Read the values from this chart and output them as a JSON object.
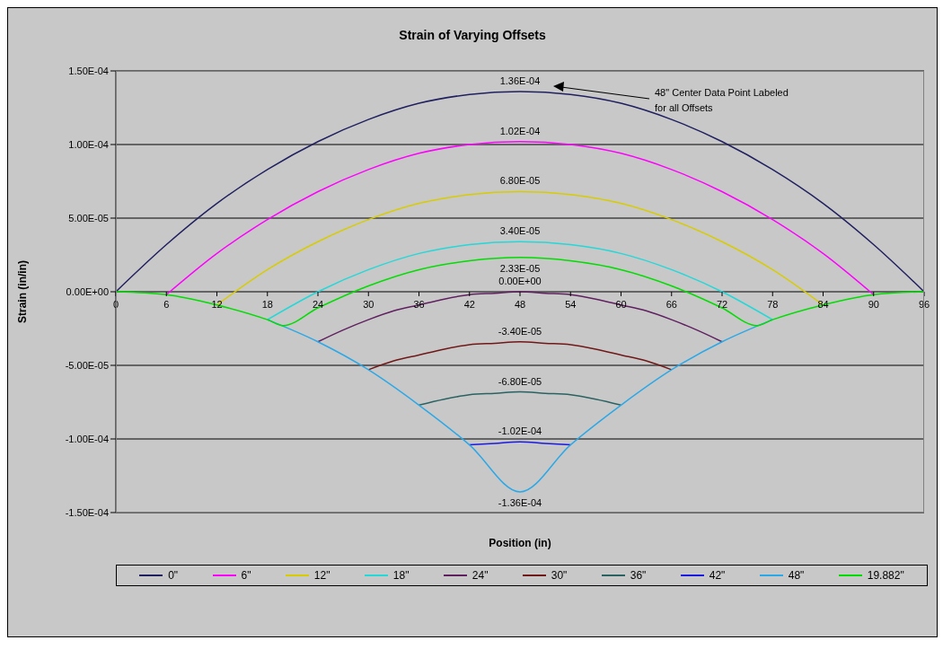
{
  "chart_data": {
    "type": "line",
    "title": "Strain of Varying Offsets",
    "xlabel": "Position (in)",
    "ylabel": "Strain (in/in)",
    "xlim": [
      0,
      96
    ],
    "xticks": [
      0,
      6,
      12,
      18,
      24,
      30,
      36,
      42,
      48,
      54,
      60,
      66,
      72,
      78,
      84,
      90,
      96
    ],
    "ylim": [
      -0.00015,
      0.00015
    ],
    "yticks": [
      {
        "value": -0.00015,
        "label": "-1.50E-04"
      },
      {
        "value": -0.0001,
        "label": "-1.00E-04"
      },
      {
        "value": -5e-05,
        "label": "-5.00E-05"
      },
      {
        "value": 0,
        "label": "0.00E+00"
      },
      {
        "value": 5e-05,
        "label": "5.00E-05"
      },
      {
        "value": 0.0001,
        "label": "1.00E-04"
      },
      {
        "value": 0.00015,
        "label": "1.50E-04"
      }
    ],
    "grid": "y",
    "legend": "bottom",
    "marker": "none",
    "line_style": "solid",
    "annotations": [
      "48\" Center Data Point Labeled for all Offsets"
    ],
    "series": [
      {
        "name": "0\"",
        "color": "#202060",
        "x": [
          0,
          6,
          12,
          18,
          24,
          30,
          36,
          42,
          48,
          54,
          60,
          66,
          72,
          78,
          84,
          90,
          96
        ],
        "values": [
          0,
          3.2e-05,
          6e-05,
          8.3e-05,
          0.000102,
          0.000117,
          0.000128,
          0.000134,
          0.000136,
          0.000134,
          0.000128,
          0.000117,
          0.000102,
          8.3e-05,
          6e-05,
          3.2e-05,
          0
        ],
        "value_labels": [
          null,
          null,
          null,
          null,
          null,
          null,
          null,
          null,
          "1.36E-04",
          null,
          null,
          null,
          null,
          null,
          null,
          null,
          null
        ]
      },
      {
        "name": "6\"",
        "color": "#ff00ff",
        "x": [
          6,
          12,
          18,
          24,
          30,
          36,
          42,
          48,
          54,
          60,
          66,
          72,
          78,
          84,
          90
        ],
        "values": [
          -2e-06,
          2.6e-05,
          4.9e-05,
          6.8e-05,
          8.3e-05,
          9.4e-05,
          0.0001,
          0.000102,
          0.0001,
          9.4e-05,
          8.3e-05,
          6.8e-05,
          4.9e-05,
          2.6e-05,
          -2e-06
        ],
        "value_labels": [
          null,
          null,
          null,
          null,
          null,
          null,
          null,
          "1.02E-04",
          null,
          null,
          null,
          null,
          null,
          null,
          null
        ]
      },
      {
        "name": "12\"",
        "color": "#d8cc00",
        "x": [
          12,
          18,
          24,
          30,
          36,
          42,
          48,
          54,
          60,
          66,
          72,
          78,
          84
        ],
        "values": [
          -9e-06,
          1.5e-05,
          3.4e-05,
          4.9e-05,
          6e-05,
          6.6e-05,
          6.8e-05,
          6.6e-05,
          6e-05,
          4.9e-05,
          3.4e-05,
          1.5e-05,
          -9e-06
        ],
        "value_labels": [
          null,
          null,
          null,
          null,
          null,
          null,
          "6.80E-05",
          null,
          null,
          null,
          null,
          null,
          null
        ]
      },
      {
        "name": "18\"",
        "color": "#22d8d8",
        "x": [
          18,
          24,
          30,
          36,
          42,
          48,
          54,
          60,
          66,
          72,
          78
        ],
        "values": [
          -1.9e-05,
          0,
          1.5e-05,
          2.6e-05,
          3.2e-05,
          3.4e-05,
          3.2e-05,
          2.6e-05,
          1.5e-05,
          0,
          -1.9e-05
        ],
        "value_labels": [
          null,
          null,
          null,
          null,
          null,
          "3.40E-05",
          null,
          null,
          null,
          null,
          null
        ]
      },
      {
        "name": "24\"",
        "color": "#602060",
        "x": [
          24,
          27,
          30,
          33,
          36,
          39,
          42,
          45,
          48,
          51,
          54,
          57,
          60,
          63,
          66,
          69,
          72
        ],
        "values": [
          -3.4e-05,
          -2.6e-05,
          -1.9e-05,
          -1.3e-05,
          -9e-06,
          -5e-06,
          -2e-06,
          -1e-06,
          0,
          -1e-06,
          -2e-06,
          -5e-06,
          -9e-06,
          -1.3e-05,
          -1.9e-05,
          -2.6e-05,
          -3.4e-05
        ],
        "value_labels": [
          null,
          null,
          null,
          null,
          null,
          null,
          null,
          null,
          "0.00E+00",
          null,
          null,
          null,
          null,
          null,
          null,
          null,
          null
        ]
      },
      {
        "name": "30\"",
        "color": "#701818",
        "x": [
          30,
          33,
          36,
          39,
          42,
          45,
          48,
          51,
          54,
          57,
          60,
          63,
          66
        ],
        "values": [
          -5.3e-05,
          -4.7e-05,
          -4.3e-05,
          -3.9e-05,
          -3.6e-05,
          -3.5e-05,
          -3.4e-05,
          -3.5e-05,
          -3.6e-05,
          -3.9e-05,
          -4.3e-05,
          -4.7e-05,
          -5.3e-05
        ],
        "value_labels": [
          null,
          null,
          null,
          null,
          null,
          null,
          "-3.40E-05",
          null,
          null,
          null,
          null,
          null,
          null
        ]
      },
      {
        "name": "36\"",
        "color": "#2a6262",
        "x": [
          36,
          39,
          42,
          45,
          48,
          51,
          54,
          57,
          60
        ],
        "values": [
          -7.7e-05,
          -7.3e-05,
          -7e-05,
          -6.9e-05,
          -6.8e-05,
          -6.9e-05,
          -7e-05,
          -7.3e-05,
          -7.7e-05
        ],
        "value_labels": [
          null,
          null,
          null,
          null,
          "-6.80E-05",
          null,
          null,
          null,
          null
        ]
      },
      {
        "name": "42\"",
        "color": "#1a1ae0",
        "x": [
          42,
          45,
          48,
          51,
          54
        ],
        "values": [
          -0.000104,
          -0.000103,
          -0.000102,
          -0.000103,
          -0.000104
        ],
        "value_labels": [
          null,
          null,
          "-1.02E-04",
          null,
          null
        ]
      },
      {
        "name": "48\"",
        "color": "#2aa8e8",
        "x": [
          18,
          24,
          30,
          36,
          42,
          48,
          54,
          60,
          66,
          72,
          78
        ],
        "values": [
          -1.9e-05,
          -3.4e-05,
          -5.3e-05,
          -7.7e-05,
          -0.000104,
          -0.000136,
          -0.000104,
          -7.7e-05,
          -5.3e-05,
          -3.4e-05,
          -1.9e-05
        ],
        "value_labels": [
          null,
          null,
          null,
          null,
          null,
          "-1.36E-04",
          null,
          null,
          null,
          null,
          null
        ]
      },
      {
        "name": "19.882\"",
        "color": "#00dd00",
        "x": [
          0,
          6,
          12,
          18,
          19.882,
          24,
          30,
          36,
          42,
          48,
          54,
          60,
          66,
          72,
          76.118,
          78,
          84,
          90,
          96
        ],
        "values": [
          0,
          -2e-06,
          -9e-06,
          -1.9e-05,
          -2.3e-05,
          -1.1e-05,
          4e-06,
          1.5e-05,
          2.1e-05,
          2.33e-05,
          2.1e-05,
          1.5e-05,
          4e-06,
          -1.1e-05,
          -2.3e-05,
          -1.9e-05,
          -9e-06,
          -2e-06,
          0
        ],
        "value_labels": [
          null,
          null,
          null,
          null,
          null,
          null,
          null,
          null,
          null,
          "2.33E-05",
          null,
          null,
          null,
          null,
          null,
          null,
          null,
          null,
          null
        ]
      }
    ]
  }
}
